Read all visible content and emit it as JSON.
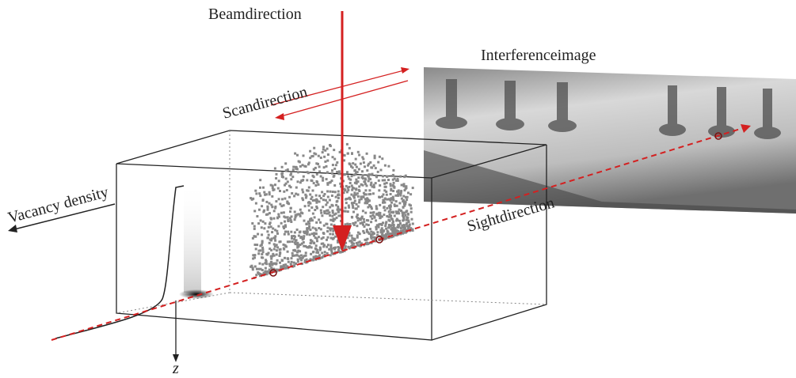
{
  "labels": {
    "beam": "Beamdirection",
    "scan": "Scandirection",
    "image": "Interferenceimage",
    "vacancy": "Vacancy density",
    "sight": "Sightdirection",
    "z": "z"
  }
}
